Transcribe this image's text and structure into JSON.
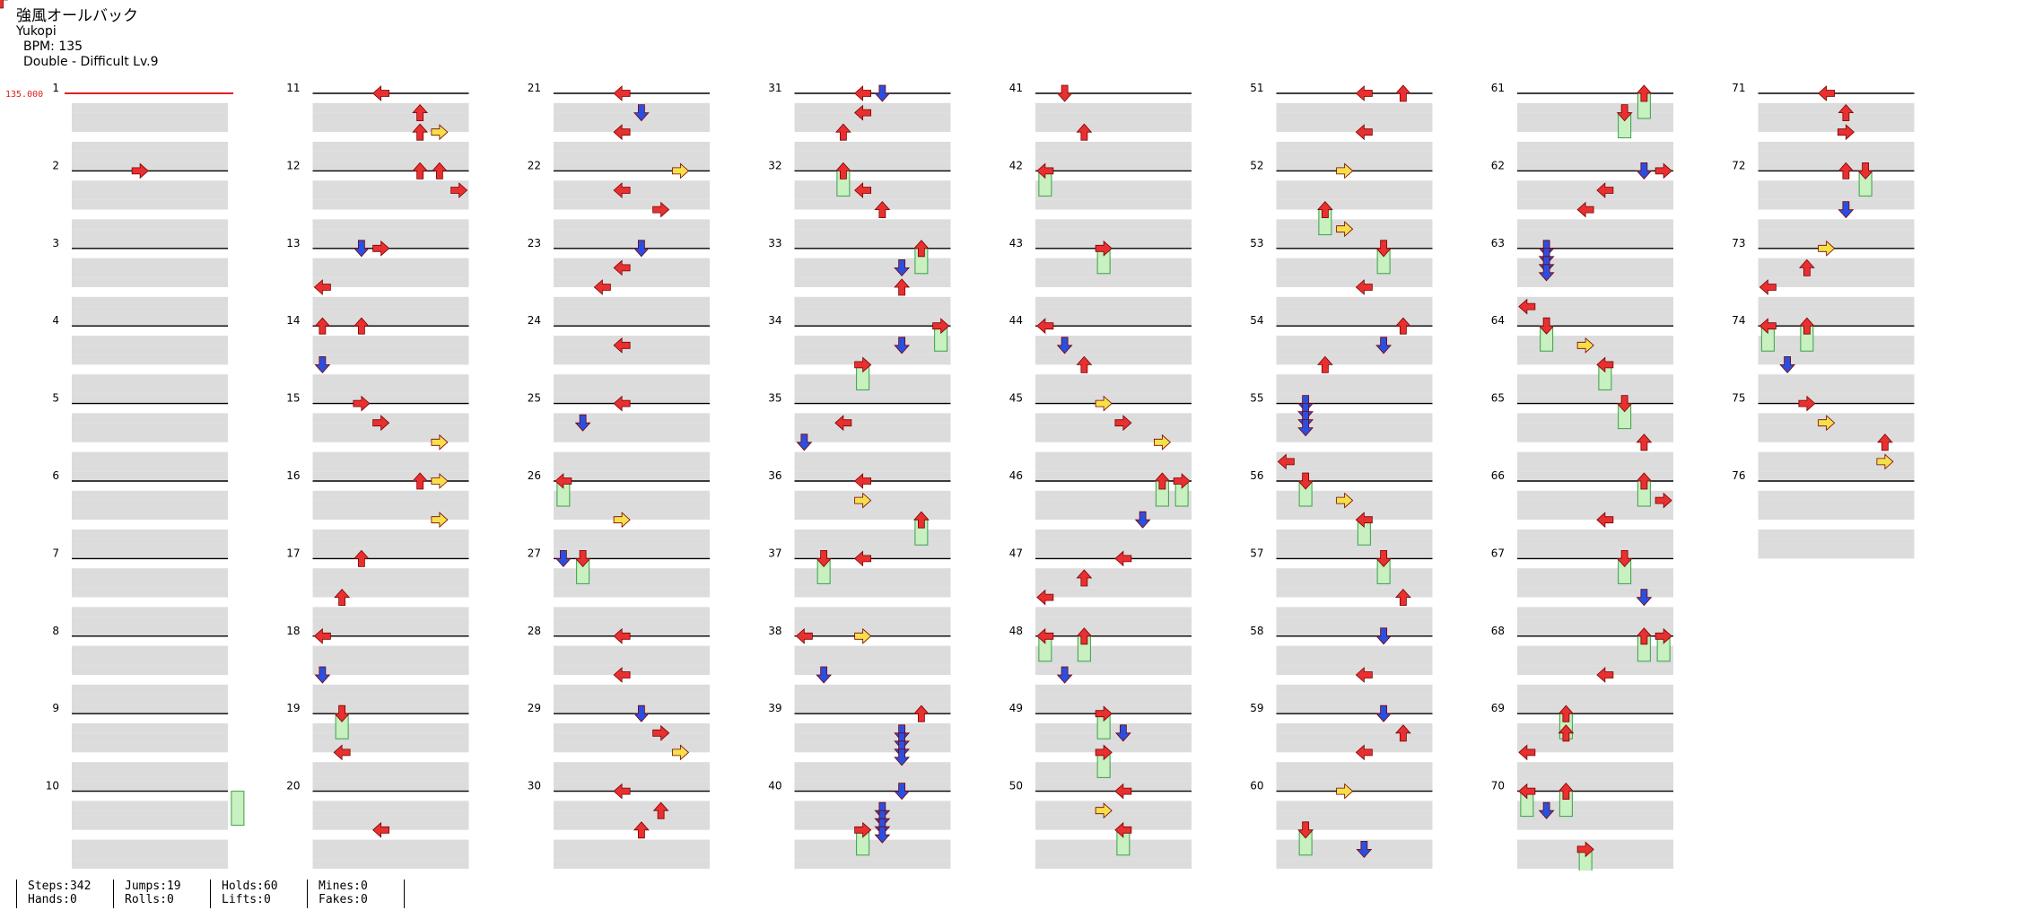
{
  "song": {
    "title": "強風オールバック",
    "artist": "Yukopi",
    "bpm_text": "BPM: 135",
    "difficulty_text": "Double - Difficult Lv.9"
  },
  "bpm_marker": "135.000",
  "measures_per_column": 10,
  "total_measures": 76,
  "colors": {
    "left": "#e83030",
    "down": "#2a4fe0",
    "up": "#e83030",
    "right": "#e83030",
    "freeze": "#c8f0c0",
    "freeze_edge": "#3aa04a",
    "yellow": "#f5e04a",
    "band": "#dcdcdc"
  },
  "notes": [
    [
      2,
      3,
      0.0,
      4,
      0
    ],
    [
      10,
      8,
      0.0,
      6,
      1
    ],
    [
      11,
      3,
      0.0,
      0,
      0
    ],
    [
      11,
      5,
      0.25,
      2,
      0
    ],
    [
      11,
      6,
      0.5,
      3,
      0
    ],
    [
      11,
      5,
      0.5,
      2,
      1
    ],
    [
      12,
      5,
      0.0,
      2,
      0
    ],
    [
      12,
      6,
      0.0,
      2,
      0
    ],
    [
      12,
      7,
      0.25,
      3,
      0
    ],
    [
      13,
      2,
      0.0,
      1,
      0
    ],
    [
      13,
      3,
      0.0,
      4,
      0
    ],
    [
      13,
      0,
      0.5,
      0,
      0
    ],
    [
      14,
      0,
      0.0,
      2,
      1
    ],
    [
      14,
      2,
      0.0,
      2,
      1
    ],
    [
      14,
      0,
      0.5,
      1,
      0
    ],
    [
      15,
      2,
      0.0,
      3,
      0
    ],
    [
      15,
      3,
      0.25,
      4,
      0
    ],
    [
      15,
      6,
      0.5,
      3,
      0
    ],
    [
      16,
      5,
      0.0,
      2,
      0
    ],
    [
      16,
      6,
      0.0,
      3,
      0
    ],
    [
      16,
      6,
      0.5,
      3,
      0
    ],
    [
      17,
      2,
      0.0,
      2,
      0
    ],
    [
      17,
      1,
      0.5,
      2,
      0
    ],
    [
      18,
      0,
      0.0,
      0,
      0
    ],
    [
      18,
      0,
      0.5,
      1,
      0
    ],
    [
      19,
      1,
      0.0,
      6,
      0
    ],
    [
      19,
      1,
      0.5,
      0,
      0
    ],
    [
      20,
      3,
      0.5,
      0,
      0
    ],
    [
      21,
      3,
      0.0,
      0,
      0
    ],
    [
      21,
      4,
      0.25,
      1,
      0
    ],
    [
      21,
      3,
      0.5,
      0,
      0
    ],
    [
      22,
      6,
      0.0,
      3,
      0
    ],
    [
      22,
      3,
      0.25,
      0,
      0
    ],
    [
      22,
      5,
      0.5,
      3,
      0
    ],
    [
      23,
      4,
      0.0,
      1,
      0
    ],
    [
      23,
      3,
      0.25,
      0,
      0
    ],
    [
      23,
      2,
      0.5,
      0,
      0
    ],
    [
      24,
      3,
      0.25,
      0,
      0
    ],
    [
      25,
      3,
      0.0,
      0,
      0
    ],
    [
      25,
      1,
      0.25,
      1,
      0
    ],
    [
      26,
      0,
      0.0,
      6,
      0
    ],
    [
      26,
      3,
      0.5,
      3,
      0
    ],
    [
      27,
      0,
      0.0,
      1,
      0
    ],
    [
      27,
      1,
      0.0,
      6,
      0
    ],
    [
      28,
      3,
      0.0,
      0,
      0
    ],
    [
      28,
      3,
      0.5,
      0,
      0
    ],
    [
      29,
      4,
      0.0,
      1,
      0
    ],
    [
      29,
      5,
      0.25,
      3,
      0
    ],
    [
      29,
      6,
      0.5,
      3,
      0
    ],
    [
      30,
      3,
      0.0,
      0,
      0
    ],
    [
      30,
      5,
      0.25,
      2,
      0
    ],
    [
      30,
      4,
      0.5,
      2,
      0
    ],
    [
      31,
      3,
      0.0,
      0,
      0
    ],
    [
      31,
      4,
      0.0,
      1,
      0
    ],
    [
      31,
      3,
      0.25,
      0,
      0
    ],
    [
      31,
      2,
      0.5,
      2,
      0
    ],
    [
      32,
      2,
      0.0,
      6,
      0
    ],
    [
      32,
      3,
      0.25,
      0,
      0
    ],
    [
      32,
      4,
      0.5,
      2,
      0
    ],
    [
      33,
      6,
      0.0,
      6,
      0
    ],
    [
      33,
      5,
      0.25,
      1,
      0
    ],
    [
      33,
      5,
      0.5,
      2,
      0
    ],
    [
      34,
      7,
      0.0,
      6,
      0
    ],
    [
      34,
      5,
      0.25,
      1,
      0
    ],
    [
      34,
      3,
      0.5,
      6,
      0
    ],
    [
      35,
      2,
      0.25,
      0,
      0
    ],
    [
      35,
      0,
      0.5,
      1,
      0
    ],
    [
      36,
      3,
      0.0,
      0,
      0
    ],
    [
      36,
      3,
      0.25,
      3,
      0
    ],
    [
      36,
      6,
      0.5,
      6,
      0
    ],
    [
      37,
      3,
      0.0,
      0,
      0
    ],
    [
      37,
      1,
      0.0,
      6,
      0
    ],
    [
      38,
      0,
      0.0,
      0,
      0
    ],
    [
      38,
      3,
      0.0,
      3,
      0
    ],
    [
      38,
      1,
      0.5,
      1,
      0
    ],
    [
      39,
      6,
      0.0,
      2,
      0
    ],
    [
      39,
      5,
      0.25,
      5,
      0
    ],
    [
      40,
      5,
      0.0,
      1,
      0
    ],
    [
      40,
      4,
      0.25,
      5,
      0
    ],
    [
      40,
      3,
      0.5,
      6,
      0
    ],
    [
      41,
      1,
      0.0,
      4,
      0
    ],
    [
      41,
      2,
      0.5,
      2,
      0
    ],
    [
      42,
      0,
      0.0,
      6,
      0
    ],
    [
      43,
      3,
      0.0,
      6,
      0
    ],
    [
      44,
      0,
      0.0,
      0,
      0
    ],
    [
      44,
      1,
      0.25,
      1,
      0
    ],
    [
      44,
      2,
      0.5,
      2,
      0
    ],
    [
      45,
      3,
      0.0,
      3,
      0
    ],
    [
      45,
      4,
      0.25,
      3,
      0
    ],
    [
      45,
      6,
      0.5,
      3,
      0
    ],
    [
      46,
      6,
      0.0,
      6,
      0
    ],
    [
      46,
      7,
      0.0,
      6,
      0
    ],
    [
      46,
      5,
      0.5,
      1,
      0
    ],
    [
      47,
      4,
      0.0,
      0,
      0
    ],
    [
      47,
      2,
      0.25,
      2,
      0
    ],
    [
      47,
      0,
      0.5,
      0,
      0
    ],
    [
      48,
      0,
      0.0,
      6,
      0
    ],
    [
      48,
      2,
      0.0,
      6,
      0
    ],
    [
      48,
      1,
      0.5,
      1,
      0
    ],
    [
      49,
      3,
      0.0,
      6,
      0
    ],
    [
      49,
      4,
      0.25,
      1,
      0
    ],
    [
      49,
      3,
      0.5,
      6,
      0
    ],
    [
      50,
      4,
      0.0,
      0,
      0
    ],
    [
      50,
      3,
      0.25,
      3,
      0
    ],
    [
      50,
      4,
      0.5,
      6,
      0
    ],
    [
      51,
      4,
      0.0,
      0,
      0
    ],
    [
      51,
      6,
      0.0,
      2,
      0
    ],
    [
      51,
      4,
      0.5,
      0,
      0
    ],
    [
      52,
      3,
      0.0,
      3,
      0
    ],
    [
      52,
      2,
      0.5,
      6,
      0
    ],
    [
      52,
      3,
      0.75,
      3,
      0
    ],
    [
      53,
      5,
      0.0,
      6,
      0
    ],
    [
      53,
      4,
      0.5,
      0,
      0
    ],
    [
      54,
      6,
      0.0,
      2,
      0
    ],
    [
      54,
      5,
      0.25,
      1,
      0
    ],
    [
      54,
      2,
      0.5,
      2,
      0
    ],
    [
      55,
      1,
      0.0,
      5,
      0
    ],
    [
      55,
      0,
      0.75,
      0,
      0
    ],
    [
      56,
      1,
      0.0,
      6,
      0
    ],
    [
      56,
      3,
      0.25,
      3,
      0
    ],
    [
      56,
      4,
      0.5,
      6,
      0
    ],
    [
      57,
      5,
      0.0,
      6,
      0
    ],
    [
      57,
      6,
      0.5,
      2,
      0
    ],
    [
      58,
      5,
      0.0,
      1,
      0
    ],
    [
      58,
      4,
      0.5,
      0,
      0
    ],
    [
      59,
      5,
      0.0,
      1,
      0
    ],
    [
      59,
      6,
      0.25,
      2,
      0
    ],
    [
      59,
      4,
      0.5,
      0,
      0
    ],
    [
      60,
      3,
      0.0,
      3,
      0
    ],
    [
      60,
      1,
      0.5,
      6,
      0
    ],
    [
      60,
      4,
      0.75,
      1,
      0
    ],
    [
      61,
      6,
      0.0,
      6,
      0
    ],
    [
      61,
      5,
      0.25,
      6,
      0
    ],
    [
      62,
      7,
      0.0,
      3,
      0
    ],
    [
      62,
      6,
      0.0,
      1,
      0
    ],
    [
      62,
      4,
      0.25,
      0,
      0
    ],
    [
      62,
      3,
      0.5,
      0,
      0
    ],
    [
      63,
      1,
      0.0,
      5,
      0
    ],
    [
      63,
      0,
      0.75,
      0,
      0
    ],
    [
      64,
      1,
      0.0,
      6,
      0
    ],
    [
      64,
      3,
      0.25,
      3,
      0
    ],
    [
      64,
      4,
      0.5,
      6,
      0
    ],
    [
      65,
      5,
      0.0,
      6,
      0
    ],
    [
      65,
      6,
      0.5,
      2,
      0
    ],
    [
      66,
      6,
      0.0,
      6,
      0
    ],
    [
      66,
      7,
      0.25,
      3,
      0
    ],
    [
      66,
      4,
      0.5,
      0,
      0
    ],
    [
      67,
      5,
      0.0,
      6,
      0
    ],
    [
      67,
      6,
      0.5,
      1,
      0
    ],
    [
      68,
      6,
      0.0,
      6,
      0
    ],
    [
      68,
      7,
      0.0,
      6,
      0
    ],
    [
      68,
      4,
      0.5,
      0,
      0
    ],
    [
      69,
      2,
      0.0,
      6,
      0
    ],
    [
      69,
      2,
      0.25,
      2,
      0
    ],
    [
      69,
      0,
      0.5,
      0,
      0
    ],
    [
      70,
      0,
      0.0,
      6,
      0
    ],
    [
      70,
      2,
      0.0,
      6,
      0
    ],
    [
      70,
      1,
      0.25,
      1,
      0
    ],
    [
      70,
      3,
      0.75,
      6,
      0
    ],
    [
      71,
      3,
      0.0,
      0,
      0
    ],
    [
      71,
      4,
      0.25,
      2,
      0
    ],
    [
      71,
      4,
      0.5,
      3,
      0
    ],
    [
      72,
      4,
      0.0,
      2,
      0
    ],
    [
      72,
      5,
      0.0,
      6,
      0
    ],
    [
      72,
      4,
      0.5,
      1,
      0
    ],
    [
      73,
      3,
      0.0,
      3,
      0
    ],
    [
      73,
      2,
      0.25,
      2,
      0
    ],
    [
      73,
      0,
      0.5,
      0,
      0
    ],
    [
      74,
      0,
      0.0,
      6,
      0
    ],
    [
      74,
      2,
      0.0,
      6,
      0
    ],
    [
      74,
      1,
      0.5,
      1,
      0
    ],
    [
      75,
      2,
      0.0,
      3,
      0
    ],
    [
      75,
      3,
      0.25,
      3,
      0
    ],
    [
      75,
      6,
      0.5,
      2,
      0
    ],
    [
      75,
      6,
      0.75,
      3,
      0
    ]
  ],
  "stats": {
    "steps": "Steps:342",
    "hands": "Hands:0",
    "jumps": "Jumps:19",
    "rolls": "Rolls:0",
    "holds": "Holds:60",
    "lifts": "Lifts:0",
    "mines": "Mines:0",
    "fakes": "Fakes:0"
  }
}
